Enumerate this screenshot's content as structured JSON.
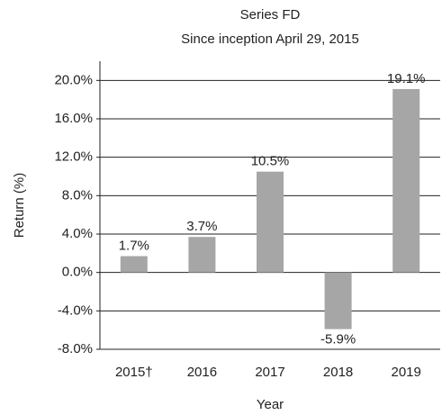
{
  "chart_data": {
    "type": "bar",
    "title": "Series FD",
    "subtitle": "Since inception April 29, 2015",
    "x_label": "Year",
    "y_label": "Return (%)",
    "categories": [
      "2015†",
      "2016",
      "2017",
      "2018",
      "2019"
    ],
    "values": [
      1.7,
      3.7,
      10.5,
      -5.9,
      19.1
    ],
    "value_labels": [
      "1.7%",
      "3.7%",
      "10.5%",
      "-5.9%",
      "19.1%"
    ],
    "color": "#a6a6a6",
    "ylim": [
      -8,
      22
    ],
    "yticks": [
      {
        "value": -8,
        "label": "-8.0%"
      },
      {
        "value": -4,
        "label": "-4.0%"
      },
      {
        "value": 0,
        "label": "0.0%"
      },
      {
        "value": 4,
        "label": "4.0%"
      },
      {
        "value": 8,
        "label": "8.0%"
      },
      {
        "value": 12,
        "label": "12.0%"
      },
      {
        "value": 16,
        "label": "16.0%"
      },
      {
        "value": 20,
        "label": "20.0%"
      }
    ],
    "grid": true
  }
}
